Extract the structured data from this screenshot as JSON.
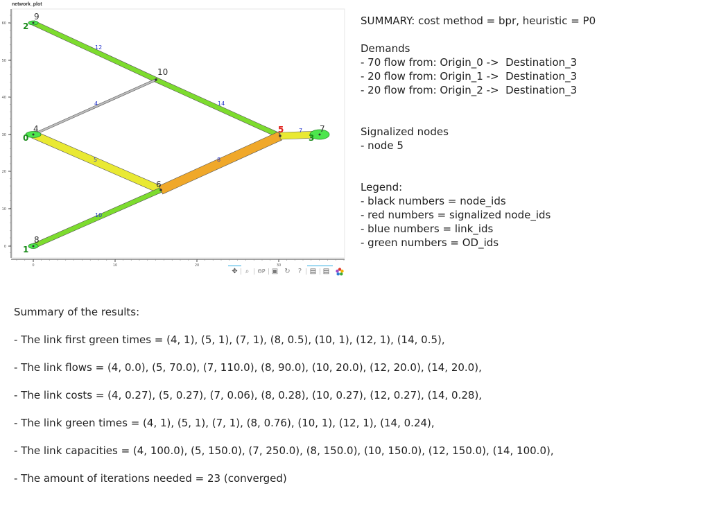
{
  "plot": {
    "title": "network_plot",
    "x_ticks": [
      "0",
      "10",
      "20",
      "30"
    ],
    "y_ticks": [
      "60",
      "50",
      "40",
      "30",
      "20",
      "10",
      "0"
    ]
  },
  "network": {
    "links": [
      {
        "id": "12",
        "from": "2",
        "to": "10",
        "color": "#7ddc2e"
      },
      {
        "id": "14",
        "from": "10",
        "to": "5",
        "color": "#7ddc2e"
      },
      {
        "id": "4",
        "from": "4",
        "to": "10",
        "color": "#bdbdbd"
      },
      {
        "id": "5",
        "from": "0",
        "to": "6",
        "color": "#e9e933"
      },
      {
        "id": "8",
        "from": "6",
        "to": "5",
        "color": "#f0a82a"
      },
      {
        "id": "10",
        "from": "1",
        "to": "6",
        "color": "#7ddc2e"
      },
      {
        "id": "7",
        "from": "5",
        "to": "3",
        "color": "#e9e933"
      }
    ],
    "node_labels": [
      {
        "id": "9",
        "color": "#333333"
      },
      {
        "id": "10",
        "color": "#333333"
      },
      {
        "id": "4",
        "color": "#333333"
      },
      {
        "id": "6",
        "color": "#333333"
      },
      {
        "id": "8",
        "color": "#333333"
      },
      {
        "id": "7",
        "color": "#333333"
      },
      {
        "id": "5",
        "color": "#e0201b"
      }
    ],
    "od_labels": [
      "2",
      "0",
      "1",
      "3"
    ],
    "colors": {
      "node_id": "#333333",
      "signalized": "#e0201b",
      "link_id": "#2233cc",
      "od_id": "#1a8a1a",
      "od_node_fill": "#4de64d"
    }
  },
  "toolbar": {
    "icons": [
      "pan-icon",
      "box-zoom-icon",
      "wheel-zoom-icon",
      "save-icon",
      "reset-icon",
      "help-icon",
      "hover-icon",
      "tap-icon",
      "bokeh-logo-icon"
    ]
  },
  "summary": {
    "header": "SUMMARY: cost method = bpr, heuristic = P0",
    "demands_title": "Demands",
    "demands": [
      "- 70 flow from: Origin_0 ->  Destination_3",
      "- 20 flow from: Origin_1 ->  Destination_3",
      "- 20 flow from: Origin_2 ->  Destination_3"
    ],
    "signalized_title": "Signalized nodes",
    "signalized": [
      "- node 5"
    ],
    "legend_title": "Legend:",
    "legend": [
      "- black numbers = node_ids",
      "- red numbers = signalized node_ids",
      "- blue numbers = link_ids",
      "- green numbers = OD_ids"
    ]
  },
  "results": {
    "title": "Summary of the results:",
    "lines": [
      "- The link first green times = (4, 1), (5, 1), (7, 1), (8, 0.5), (10, 1), (12, 1), (14, 0.5),",
      "- The link flows = (4, 0.0), (5, 70.0), (7, 110.0), (8, 90.0), (10, 20.0), (12, 20.0), (14, 20.0),",
      "- The link costs = (4, 0.27), (5, 0.27), (7, 0.06), (8, 0.28), (10, 0.27), (12, 0.27), (14, 0.28),",
      "- The link green times = (4, 1), (5, 1), (7, 1), (8, 0.76), (10, 1), (12, 1), (14, 0.24),",
      "- The link capacities = (4, 100.0), (5, 150.0), (7, 250.0), (8, 150.0), (10, 150.0), (12, 150.0), (14, 100.0),",
      "- The amount of iterations needed = 23 (converged)"
    ]
  }
}
